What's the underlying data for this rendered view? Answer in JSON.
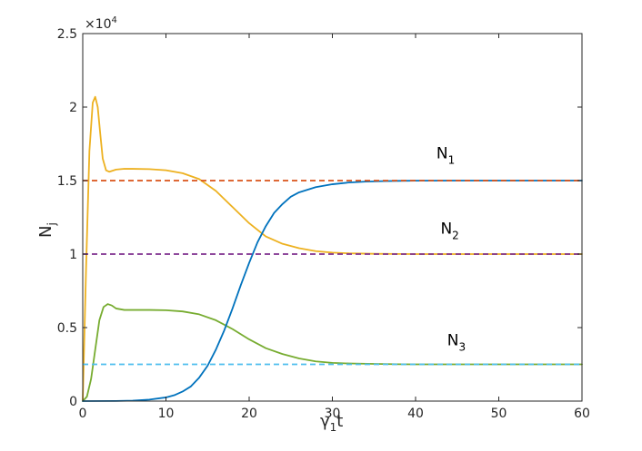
{
  "chart_data": {
    "type": "line",
    "xlabel_main": "γ",
    "xlabel_sub": "1",
    "xlabel_tail": "t",
    "ylabel_main": "N",
    "ylabel_sub": "j",
    "xlim": [
      0,
      60
    ],
    "ylim": [
      0,
      25000
    ],
    "x_ticks": [
      0,
      10,
      20,
      30,
      40,
      50,
      60
    ],
    "y_ticks": [
      0,
      5000,
      10000,
      15000,
      20000,
      25000
    ],
    "y_tick_labels": [
      "0",
      "0.5",
      "1",
      "1.5",
      "2",
      "2.5"
    ],
    "y_multiplier_base": "×10",
    "y_multiplier_exp": "4",
    "grid": false,
    "annotations": [
      {
        "main": "N",
        "sub": "1",
        "x": 42.5,
        "y": 16500
      },
      {
        "main": "N",
        "sub": "2",
        "x": 43.0,
        "y": 11400
      },
      {
        "main": "N",
        "sub": "3",
        "x": 43.8,
        "y": 3800
      }
    ],
    "series": [
      {
        "color": "#edb120",
        "style": "solid",
        "x": [
          0,
          0.4,
          0.8,
          1.2,
          1.5,
          1.8,
          2.1,
          2.4,
          2.8,
          3.2,
          4,
          5,
          6,
          8,
          10,
          12,
          14,
          16,
          18,
          20,
          22,
          24,
          26,
          28,
          30,
          32,
          35,
          38,
          40,
          45,
          50,
          55,
          60
        ],
        "y": [
          0,
          9000,
          17000,
          20300,
          20700,
          20000,
          18200,
          16500,
          15700,
          15600,
          15750,
          15800,
          15800,
          15780,
          15700,
          15500,
          15100,
          14300,
          13200,
          12100,
          11200,
          10700,
          10400,
          10200,
          10100,
          10050,
          10020,
          10010,
          10000,
          10000,
          10000,
          10000,
          10000
        ]
      },
      {
        "color": "#77ac30",
        "style": "solid",
        "x": [
          0,
          0.5,
          1,
          1.5,
          2,
          2.5,
          3,
          3.5,
          4,
          5,
          6,
          8,
          10,
          12,
          14,
          16,
          18,
          20,
          22,
          24,
          26,
          28,
          30,
          32,
          35,
          38,
          40,
          45,
          50,
          55,
          60
        ],
        "y": [
          0,
          300,
          1500,
          3500,
          5500,
          6400,
          6600,
          6500,
          6300,
          6200,
          6200,
          6200,
          6180,
          6100,
          5900,
          5500,
          4900,
          4200,
          3600,
          3200,
          2900,
          2700,
          2600,
          2560,
          2530,
          2510,
          2500,
          2500,
          2500,
          2500,
          2500
        ]
      },
      {
        "color": "#0072bd",
        "style": "solid",
        "x": [
          0,
          4,
          6,
          8,
          10,
          11,
          12,
          13,
          14,
          15,
          16,
          17,
          18,
          19,
          20,
          21,
          22,
          23,
          24,
          25,
          26,
          28,
          30,
          32,
          34,
          36,
          38,
          40,
          45,
          50,
          55,
          60
        ],
        "y": [
          0,
          10,
          30,
          100,
          250,
          400,
          650,
          1000,
          1600,
          2400,
          3500,
          4800,
          6300,
          7900,
          9400,
          10800,
          11900,
          12800,
          13400,
          13900,
          14200,
          14550,
          14750,
          14870,
          14930,
          14960,
          14980,
          14990,
          15000,
          15000,
          15000,
          15000
        ]
      },
      {
        "color": "#d95319",
        "style": "dashed",
        "x": [
          0,
          60
        ],
        "y": [
          15000,
          15000
        ]
      },
      {
        "color": "#7e2f8e",
        "style": "dashed",
        "x": [
          0,
          60
        ],
        "y": [
          10000,
          10000
        ]
      },
      {
        "color": "#4dbeee",
        "style": "dashed",
        "x": [
          0,
          60
        ],
        "y": [
          2500,
          2500
        ]
      }
    ]
  }
}
